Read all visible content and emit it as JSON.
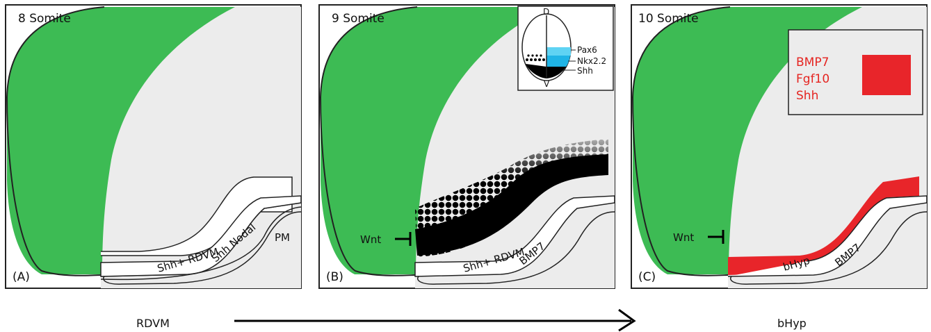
{
  "colors": {
    "green": "#3dbb54",
    "tissue": "#ececec",
    "red": "#e8252a",
    "cyan_light": "#5fd3f3",
    "cyan_dark": "#1fb4e6",
    "black": "#000000"
  },
  "panels": [
    {
      "title": "8 Somite",
      "letter": "(A)",
      "labels": {
        "rdvm": "Shh+ RDVM",
        "nodal": "Shh Nodal",
        "pm": "PM"
      }
    },
    {
      "title": "9 Somite",
      "letter": "(B)",
      "labels": {
        "wnt": "Wnt",
        "rdvm": "Shh+ RDVM",
        "bmp7": "BMP7"
      },
      "inset": {
        "dorsal": "D",
        "ventral": "V",
        "pax6": "Pax6",
        "nkx22": "Nkx2.2",
        "shh": "Shh"
      }
    },
    {
      "title": "10 Somite",
      "letter": "(C)",
      "labels": {
        "wnt": "Wnt",
        "bhyp": "bHyp",
        "bmp7": "BMP7"
      },
      "legend": [
        "BMP7",
        "Fgf10",
        "Shh"
      ]
    }
  ],
  "bottom": {
    "left": "RDVM",
    "right": "bHyp"
  }
}
